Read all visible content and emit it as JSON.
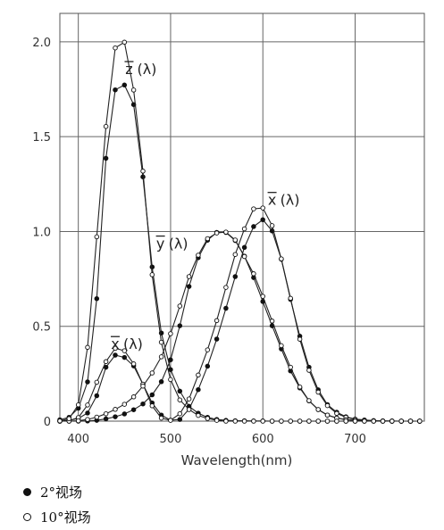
{
  "chart_data": {
    "type": "line",
    "title": "",
    "xlabel": "Wavelength(nm)",
    "ylabel": "",
    "xlim": [
      380,
      775
    ],
    "ylim": [
      0,
      2.15
    ],
    "x_ticks": [
      400,
      500,
      600,
      700
    ],
    "y_ticks": [
      0,
      0.5,
      1.0,
      1.5,
      2.0
    ],
    "y_tick_labels": [
      "0",
      "0.5",
      "1.0",
      "1.5",
      "2.0"
    ],
    "grid": true,
    "x": [
      380,
      390,
      400,
      410,
      420,
      430,
      440,
      450,
      460,
      470,
      480,
      490,
      500,
      510,
      520,
      530,
      540,
      550,
      560,
      570,
      580,
      590,
      600,
      610,
      620,
      630,
      640,
      650,
      660,
      670,
      680,
      690,
      700,
      710,
      720,
      730,
      740,
      750,
      760,
      770
    ],
    "series": [
      {
        "name": "2°视场",
        "marker": "filled",
        "curve": "x",
        "values": [
          0.001,
          0.004,
          0.014,
          0.043,
          0.134,
          0.284,
          0.348,
          0.336,
          0.291,
          0.195,
          0.096,
          0.032,
          0.005,
          0.009,
          0.063,
          0.166,
          0.29,
          0.433,
          0.595,
          0.762,
          0.916,
          1.026,
          1.062,
          1.003,
          0.854,
          0.642,
          0.448,
          0.284,
          0.165,
          0.087,
          0.047,
          0.023,
          0.011,
          0.006,
          0.003,
          0.001,
          0.001,
          0.0,
          0.0,
          0.0
        ]
      },
      {
        "name": "2°视场",
        "marker": "filled",
        "curve": "y",
        "values": [
          0.0,
          0.0,
          0.0,
          0.001,
          0.004,
          0.012,
          0.023,
          0.038,
          0.06,
          0.091,
          0.139,
          0.208,
          0.323,
          0.503,
          0.71,
          0.862,
          0.954,
          0.995,
          0.995,
          0.952,
          0.87,
          0.757,
          0.631,
          0.503,
          0.381,
          0.265,
          0.175,
          0.107,
          0.061,
          0.032,
          0.017,
          0.008,
          0.004,
          0.002,
          0.001,
          0.001,
          0.0,
          0.0,
          0.0,
          0.0
        ]
      },
      {
        "name": "2°视场",
        "marker": "filled",
        "curve": "z",
        "values": [
          0.007,
          0.02,
          0.068,
          0.207,
          0.646,
          1.386,
          1.747,
          1.772,
          1.669,
          1.288,
          0.813,
          0.465,
          0.272,
          0.158,
          0.078,
          0.042,
          0.02,
          0.009,
          0.004,
          0.002,
          0.002,
          0.001,
          0.001,
          0.0,
          0.0,
          0.0,
          0.0,
          0.0,
          0.0,
          0.0,
          0.0,
          0.0,
          0.0,
          0.0,
          0.0,
          0.0,
          0.0,
          0.0,
          0.0,
          0.0
        ]
      },
      {
        "name": "10°视场",
        "marker": "open",
        "curve": "x",
        "values": [
          0.0,
          0.003,
          0.019,
          0.085,
          0.205,
          0.314,
          0.384,
          0.371,
          0.302,
          0.195,
          0.081,
          0.016,
          0.004,
          0.039,
          0.117,
          0.243,
          0.376,
          0.53,
          0.705,
          0.879,
          1.014,
          1.119,
          1.124,
          1.031,
          0.856,
          0.648,
          0.432,
          0.268,
          0.153,
          0.082,
          0.041,
          0.02,
          0.01,
          0.005,
          0.002,
          0.001,
          0.0,
          0.0,
          0.0,
          0.0
        ]
      },
      {
        "name": "10°视场",
        "marker": "open",
        "curve": "y",
        "values": [
          0.0,
          0.0,
          0.002,
          0.009,
          0.021,
          0.039,
          0.062,
          0.089,
          0.128,
          0.185,
          0.254,
          0.339,
          0.461,
          0.607,
          0.762,
          0.875,
          0.962,
          0.992,
          0.997,
          0.955,
          0.868,
          0.777,
          0.658,
          0.528,
          0.398,
          0.284,
          0.18,
          0.108,
          0.061,
          0.032,
          0.016,
          0.008,
          0.004,
          0.002,
          0.001,
          0.0,
          0.0,
          0.0,
          0.0,
          0.0
        ]
      },
      {
        "name": "10°视场",
        "marker": "open",
        "curve": "z",
        "values": [
          0.001,
          0.013,
          0.086,
          0.389,
          0.972,
          1.554,
          1.968,
          1.998,
          1.746,
          1.318,
          0.772,
          0.416,
          0.219,
          0.112,
          0.061,
          0.03,
          0.014,
          0.004,
          0.0,
          0.0,
          0.0,
          0.0,
          0.0,
          0.0,
          0.0,
          0.0,
          0.0,
          0.0,
          0.0,
          0.0,
          0.0,
          0.0,
          0.0,
          0.0,
          0.0,
          0.0,
          0.0,
          0.0,
          0.0,
          0.0
        ]
      }
    ],
    "annotations": [
      {
        "letter": "z",
        "suffix": "(λ)",
        "at": [
          455,
          1.83
        ]
      },
      {
        "letter": "x",
        "suffix": "(λ)",
        "at": [
          610,
          1.14
        ]
      },
      {
        "letter": "y",
        "suffix": "(λ)",
        "at": [
          489,
          0.91
        ]
      },
      {
        "letter": "x",
        "suffix": "(λ)",
        "at": [
          440,
          0.38
        ]
      }
    ],
    "legend": {
      "placement": "bottom-left",
      "entries": [
        {
          "marker": "filled",
          "label": "2°视场"
        },
        {
          "marker": "open",
          "label": "10°视场"
        }
      ]
    }
  }
}
